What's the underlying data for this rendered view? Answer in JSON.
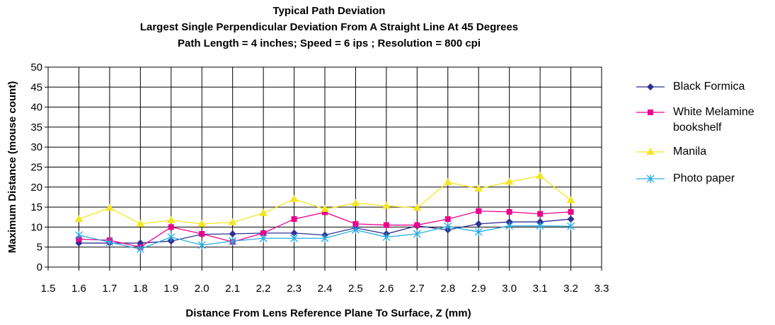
{
  "chart_data": {
    "type": "line",
    "title": [
      "Typical Path Deviation",
      "Largest Single Perpendicular Deviation From A Straight Line At 45 Degrees",
      "Path Length = 4 inches; Speed = 6 ips ; Resolution = 800 cpi"
    ],
    "xlabel": "Distance From Lens Reference Plane To Surface, Z (mm)",
    "ylabel": "Maximum Distance (mouse count)",
    "xlim": [
      1.5,
      3.3
    ],
    "ylim": [
      0,
      50
    ],
    "x_ticks": [
      "1.5",
      "1.6",
      "1.7",
      "1.8",
      "1.9",
      "2.0",
      "2.1",
      "2.2",
      "2.3",
      "2.4",
      "2.5",
      "2.6",
      "2.7",
      "2.8",
      "2.9",
      "3.0",
      "3.1",
      "3.2",
      "3.3"
    ],
    "y_ticks": [
      "0",
      "5",
      "10",
      "15",
      "20",
      "25",
      "30",
      "35",
      "40",
      "45",
      "50"
    ],
    "grid": true,
    "legend_position": "right",
    "x": [
      1.6,
      1.7,
      1.8,
      1.9,
      2.0,
      2.1,
      2.2,
      2.3,
      2.4,
      2.5,
      2.6,
      2.7,
      2.8,
      2.9,
      3.0,
      3.1,
      3.2
    ],
    "series": [
      {
        "name": "Black Formica",
        "color": "#2e3192",
        "marker": "diamond",
        "values": [
          6,
          6,
          6,
          6.5,
          8.2,
          8.3,
          8.5,
          8.5,
          8,
          9.8,
          8.3,
          10.3,
          9.3,
          10.8,
          11.3,
          11.3,
          12
        ]
      },
      {
        "name": "White Melamine bookshelf",
        "color": "#ec008c",
        "marker": "square",
        "values": [
          7,
          6.7,
          5,
          10,
          8.3,
          6.3,
          8.5,
          12,
          13.7,
          10.8,
          10.5,
          10.5,
          12,
          14,
          13.8,
          13.3,
          13.8
        ]
      },
      {
        "name": "Manila",
        "color": "#f5e625",
        "marker": "triangle",
        "values": [
          12,
          14.8,
          10.8,
          11.7,
          10.8,
          11.2,
          13.5,
          17,
          14.5,
          16,
          15.3,
          14.8,
          21.2,
          19.6,
          21.3,
          22.8,
          16.7
        ]
      },
      {
        "name": "Photo paper",
        "color": "#29abe2",
        "marker": "x",
        "values": [
          8,
          6.2,
          4.5,
          7.5,
          5.5,
          6.5,
          7.2,
          7.2,
          7.2,
          9.3,
          7.5,
          8.3,
          10.2,
          8.8,
          10.3,
          10.3,
          10.2
        ]
      }
    ]
  }
}
